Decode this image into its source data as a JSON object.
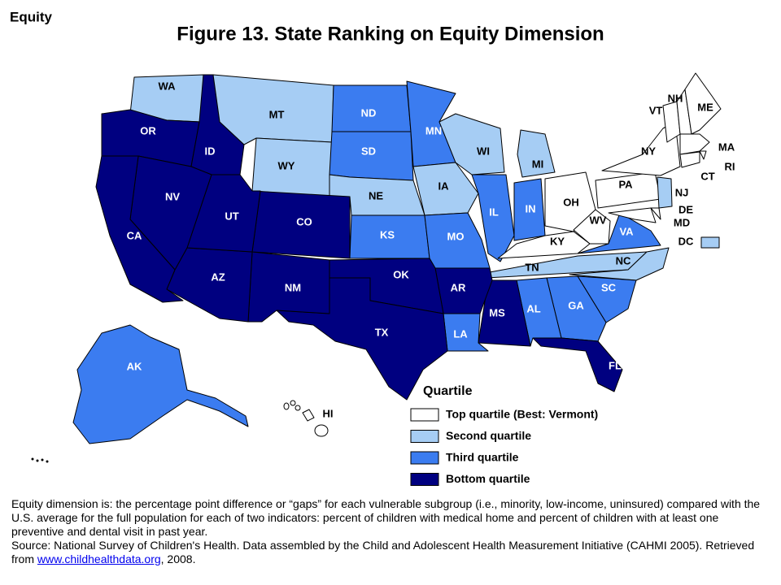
{
  "corner_label": "Equity",
  "title": "Figure 13. State Ranking on Equity Dimension",
  "states": [
    {
      "label": "WA",
      "color": "#a6cdf4"
    },
    {
      "label": "OR",
      "color": "#000080"
    },
    {
      "label": "ID",
      "color": "#000080"
    },
    {
      "label": "MT",
      "color": "#a6cdf4"
    },
    {
      "label": "WY",
      "color": "#a6cdf4"
    },
    {
      "label": "ND",
      "color": "#3b7cf0"
    },
    {
      "label": "SD",
      "color": "#3b7cf0"
    },
    {
      "label": "NE",
      "color": "#a6cdf4"
    },
    {
      "label": "KS",
      "color": "#3b7cf0"
    },
    {
      "label": "MN",
      "color": "#3b7cf0"
    },
    {
      "label": "IA",
      "color": "#a6cdf4"
    },
    {
      "label": "MO",
      "color": "#3b7cf0"
    },
    {
      "label": "WI",
      "color": "#a6cdf4"
    },
    {
      "label": "IL",
      "color": "#3b7cf0"
    },
    {
      "label": "MI",
      "color": "#a6cdf4"
    },
    {
      "label": "IN",
      "color": "#3b7cf0"
    },
    {
      "label": "OH",
      "color": "#ffffff"
    },
    {
      "label": "KY",
      "color": "#ffffff"
    },
    {
      "label": "TN",
      "color": "#a6cdf4"
    },
    {
      "label": "WV",
      "color": "#ffffff"
    },
    {
      "label": "VA",
      "color": "#3b7cf0"
    },
    {
      "label": "NC",
      "color": "#a6cdf4"
    },
    {
      "label": "SC",
      "color": "#3b7cf0"
    },
    {
      "label": "GA",
      "color": "#3b7cf0"
    },
    {
      "label": "FL",
      "color": "#000080"
    },
    {
      "label": "AL",
      "color": "#3b7cf0"
    },
    {
      "label": "MS",
      "color": "#000080"
    },
    {
      "label": "LA",
      "color": "#3b7cf0"
    },
    {
      "label": "AR",
      "color": "#000080"
    },
    {
      "label": "OK",
      "color": "#000080"
    },
    {
      "label": "TX",
      "color": "#000080"
    },
    {
      "label": "NM",
      "color": "#000080"
    },
    {
      "label": "AZ",
      "color": "#000080"
    },
    {
      "label": "CO",
      "color": "#000080"
    },
    {
      "label": "UT",
      "color": "#000080"
    },
    {
      "label": "NV",
      "color": "#000080"
    },
    {
      "label": "CA",
      "color": "#000080"
    },
    {
      "label": "PA",
      "color": "#ffffff"
    },
    {
      "label": "NY",
      "color": "#ffffff"
    },
    {
      "label": "NJ",
      "color": "#a6cdf4"
    },
    {
      "label": "DE",
      "color": "#ffffff"
    },
    {
      "label": "MD",
      "color": "#ffffff"
    },
    {
      "label": "DC",
      "color": "#a6cdf4"
    },
    {
      "label": "VT",
      "color": "#ffffff"
    },
    {
      "label": "NH",
      "color": "#ffffff"
    },
    {
      "label": "ME",
      "color": "#ffffff"
    },
    {
      "label": "MA",
      "color": "#ffffff"
    },
    {
      "label": "RI",
      "color": "#ffffff"
    },
    {
      "label": "CT",
      "color": "#ffffff"
    },
    {
      "label": "AK",
      "color": "#3b7cf0"
    },
    {
      "label": "HI",
      "color": "#ffffff"
    }
  ],
  "legend": {
    "title": "Quartile",
    "items": [
      {
        "label": "Top quartile (Best: Vermont)",
        "color": "#ffffff"
      },
      {
        "label": "Second quartile",
        "color": "#a6cdf4"
      },
      {
        "label": "Third quartile",
        "color": "#3b7cf0"
      },
      {
        "label": "Bottom quartile",
        "color": "#000080"
      }
    ]
  },
  "footnote": {
    "text": "Equity dimension is: the percentage point difference or “gaps” for each vulnerable subgroup (i.e., minority, low-income, uninsured) compared with the U.S. average for the full population for each of two indicators: percent of children with medical home and percent of children with at least one preventive and dental visit in past year.",
    "source": "Source: National Survey of Children's Health. Data assembled by the Child and Adolescent Health Measurement Initiative (CAHMI 2005).  Retrieved from ",
    "link": "www.childhealthdata.org",
    "source_end": ", 2008."
  }
}
